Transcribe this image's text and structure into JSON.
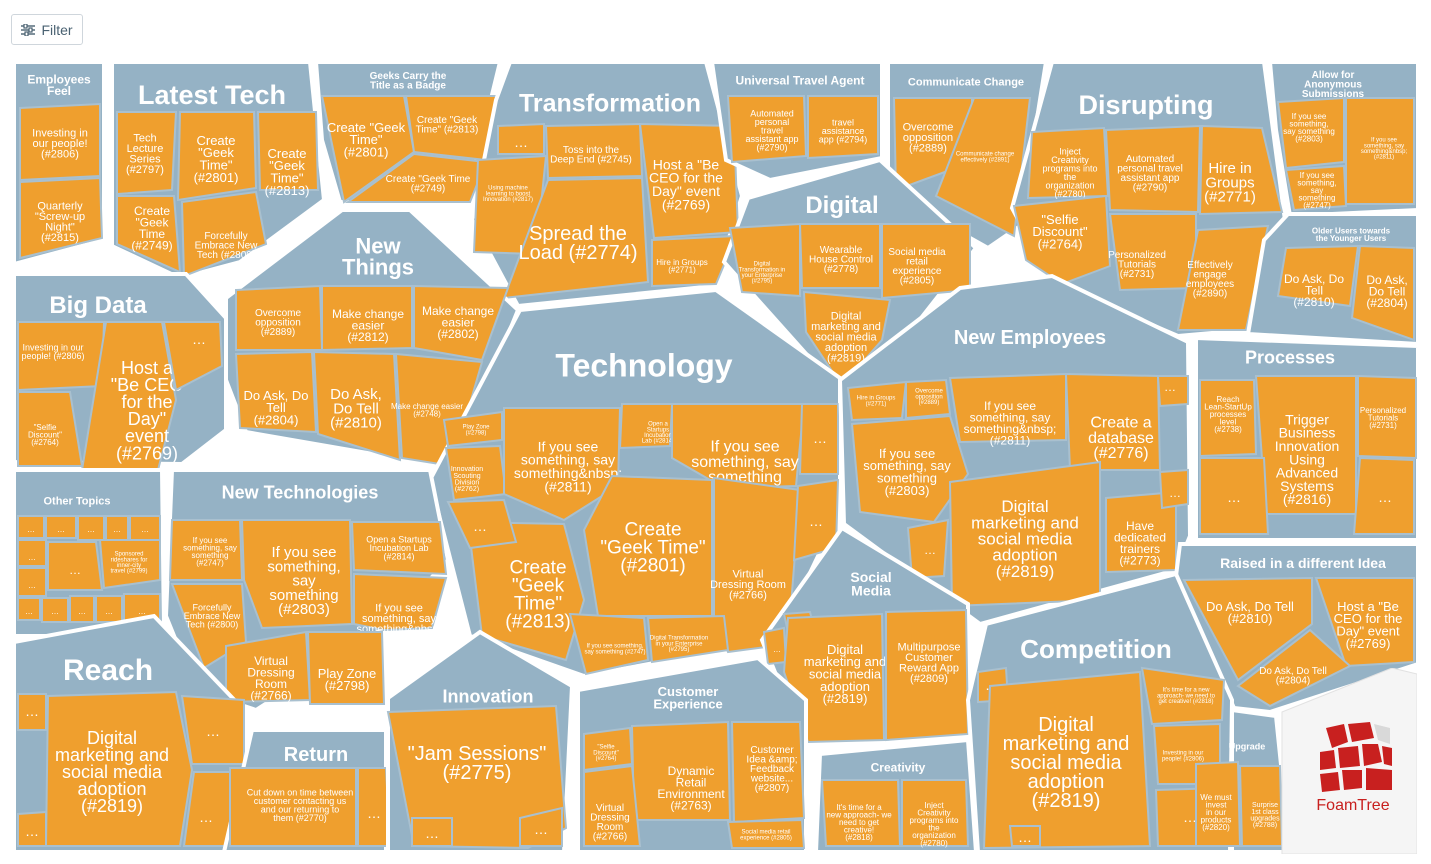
{
  "toolbar": {
    "filter_label": "Filter",
    "filter_icon": "sliders-icon"
  },
  "logo": {
    "text": "FoamTree",
    "color": "#c8201f"
  },
  "colors": {
    "group": "#95b2c5",
    "cell": "#ef9f2e",
    "background": "#ffffff"
  },
  "groups": {
    "employees_feel": {
      "title": "Employees Feel",
      "cells": [
        "Investing in our people! (#2806)",
        "Quarterly \"Screw-up Night\" (#2815)"
      ]
    },
    "latest_tech": {
      "title": "Latest Tech",
      "cells": [
        "Tech Lecture Series (#2797)",
        "Create \"Geek Time\" (#2801)",
        "Create \"Geek Time\" (#2813)",
        "Create \"Geek Time (#2749)",
        "Forcefully Embrace New Tech (#2800)"
      ]
    },
    "geeks_carry": {
      "title": "Geeks Carry the Title as a Badge",
      "cells": [
        "Create \"Geek Time\" (#2801)",
        "Create \"Geek Time\" (#2813)",
        "Create \"Geek Time (#2749)"
      ]
    },
    "transformation": {
      "title": "Transformation",
      "cells": [
        "Toss into the Deep End (#2745)",
        "Host a \"Be CEO for the Day\" event (#2769)",
        "Using machine learning to boost Innovation (#2817)",
        "Spread the Load (#2774)",
        "Hire in Groups (#2771)"
      ]
    },
    "universal_travel": {
      "title": "Universal Travel Agent",
      "cells": [
        "Automated personal travel assistant app (#2790)",
        "travel assistance app (#2794)"
      ]
    },
    "communicate_change": {
      "title": "Communicate Change",
      "cells": [
        "Overcome opposition (#2889)",
        "Communicate change effectively (#2891)"
      ]
    },
    "disrupting": {
      "title": "Disrupting",
      "cells": [
        "Inject Creativity programs into the organization (#2780)",
        "Automated personal travel assistant app (#2790)",
        "Hire in Groups (#2771)",
        "\"Selfie Discount\" (#2764)",
        "Personalized Tutorials (#2731)",
        "Effectively engage employees (#2890)"
      ]
    },
    "allow_anonymous": {
      "title": "Allow for Anonymous Submissions",
      "cells": [
        "If you see something, say something (#2803)",
        "If you see something, say something&nbsp; (#2811)",
        "If you see something, say something (#2747)"
      ]
    },
    "older_users": {
      "title": "Older Users towards the Younger Users",
      "cells": [
        "Do Ask, Do Tell (#2810)",
        "Do Ask, Do Tell (#2804)"
      ]
    },
    "new_things": {
      "title": "New Things",
      "cells": [
        "Overcome opposition (#2889)",
        "Make change easier (#2812)",
        "Make change easier (#2802)",
        "Do Ask, Do Tell (#2804)",
        "Do Ask, Do Tell (#2810)",
        "Make change easier (#2748)"
      ]
    },
    "big_data": {
      "title": "Big Data",
      "cells": [
        "Investing in our people! (#2806)",
        "Host a \"Be CEO for the Day\" event (#2769)",
        "\"Selfie Discount\" (#2764)"
      ]
    },
    "digital": {
      "title": "Digital",
      "cells": [
        "Digital Transformation in your Enterprise (#2795)",
        "Wearable House Control (#2778)",
        "Social media retail experience (#2805)",
        "Digital marketing and social media adoption (#2819)"
      ]
    },
    "technology": {
      "title": "Technology",
      "cells": [
        "Play Zone (#2798)",
        "Open a Startups Incubation Lab (#2814)",
        "Innovation Scouting Division (#2762)",
        "If you see something, say something&nbsp; (#2811)",
        "If you see something, say something (#2803)",
        "Create \"Geek Time\" (#2801)",
        "Create \"Geek Time\" (#2813)",
        "Virtual Dressing Room (#2766)",
        "If you see something, say something (#2747)",
        "Digital Transformation in your Enterprise (#2795)"
      ]
    },
    "new_employees": {
      "title": "New Employees",
      "cells": [
        "Hire in Groups (#2771)",
        "Overcome opposition (#2889)",
        "If you see something, say something&nbsp; (#2811)",
        "Create a database (#2776)",
        "If you see something, say something (#2803)",
        "Digital marketing and social media adoption (#2819)",
        "Have dedicated trainers (#2773)"
      ]
    },
    "processes": {
      "title": "Processes",
      "cells": [
        "Reach Lean-StartUp processes level (#2738)",
        "Trigger Business Innovation Using Advanced Systems (#2816)",
        "Personalized Tutorials (#2731)"
      ]
    },
    "other_topics": {
      "title": "Other Topics",
      "cells": [
        "Sponsored rideshares for inner-city travel (#2799)"
      ]
    },
    "new_technologies": {
      "title": "New Technologies",
      "cells": [
        "If you see something, say something (#2747)",
        "If you see something, say something (#2803)",
        "Open a Startups Incubation Lab (#2814)",
        "Forcefully Embrace New Tech (#2800)",
        "If you see something, say something&nbsp; (#2811)",
        "Virtual Dressing Room (#2766)",
        "Play Zone (#2798)"
      ]
    },
    "social_media": {
      "title": "Social Media",
      "cells": [
        "Digital marketing and social media adoption (#2819)",
        "Multipurpose Customer Reward App (#2809)"
      ]
    },
    "raised_idea": {
      "title": "Raised in a different Idea",
      "cells": [
        "Do Ask, Do Tell (#2810)",
        "Host a \"Be CEO for the Day\" event (#2769)",
        "Do Ask, Do Tell (#2804)"
      ]
    },
    "reach": {
      "title": "Reach",
      "cells": [
        "Digital marketing and social media adoption (#2819)"
      ]
    },
    "return": {
      "title": "Return",
      "cells": [
        "Cut down on time between customer contacting us and our returning to them (#2770)"
      ]
    },
    "innovation": {
      "title": "Innovation",
      "cells": [
        "\"Jam Sessions\" (#2775)"
      ]
    },
    "customer_experience": {
      "title": "Customer Experience",
      "cells": [
        "\"Selfie Discount\" (#2764)",
        "Dynamic Retail Environment (#2763)",
        "Customer Idea &amp; Feedback website... (#2807)",
        "Virtual Dressing Room (#2766)",
        "Social media retail experience (#2805)"
      ]
    },
    "creativity": {
      "title": "Creativity",
      "cells": [
        "It's time for a new approach- we need to get creative! (#2818)",
        "Inject Creativity programs into the organization (#2780)"
      ]
    },
    "competition": {
      "title": "Competition",
      "cells": [
        "Digital marketing and social media adoption (#2819)",
        "It's time for a new approach- we need to get creative! (#2818)",
        "Investing in our people! (#2806)"
      ]
    },
    "upgrade": {
      "title": "Upgrade",
      "cells": [
        "We must invest in our products (#2820)",
        "Surprise 1st class upgrades (#2788)"
      ]
    }
  }
}
